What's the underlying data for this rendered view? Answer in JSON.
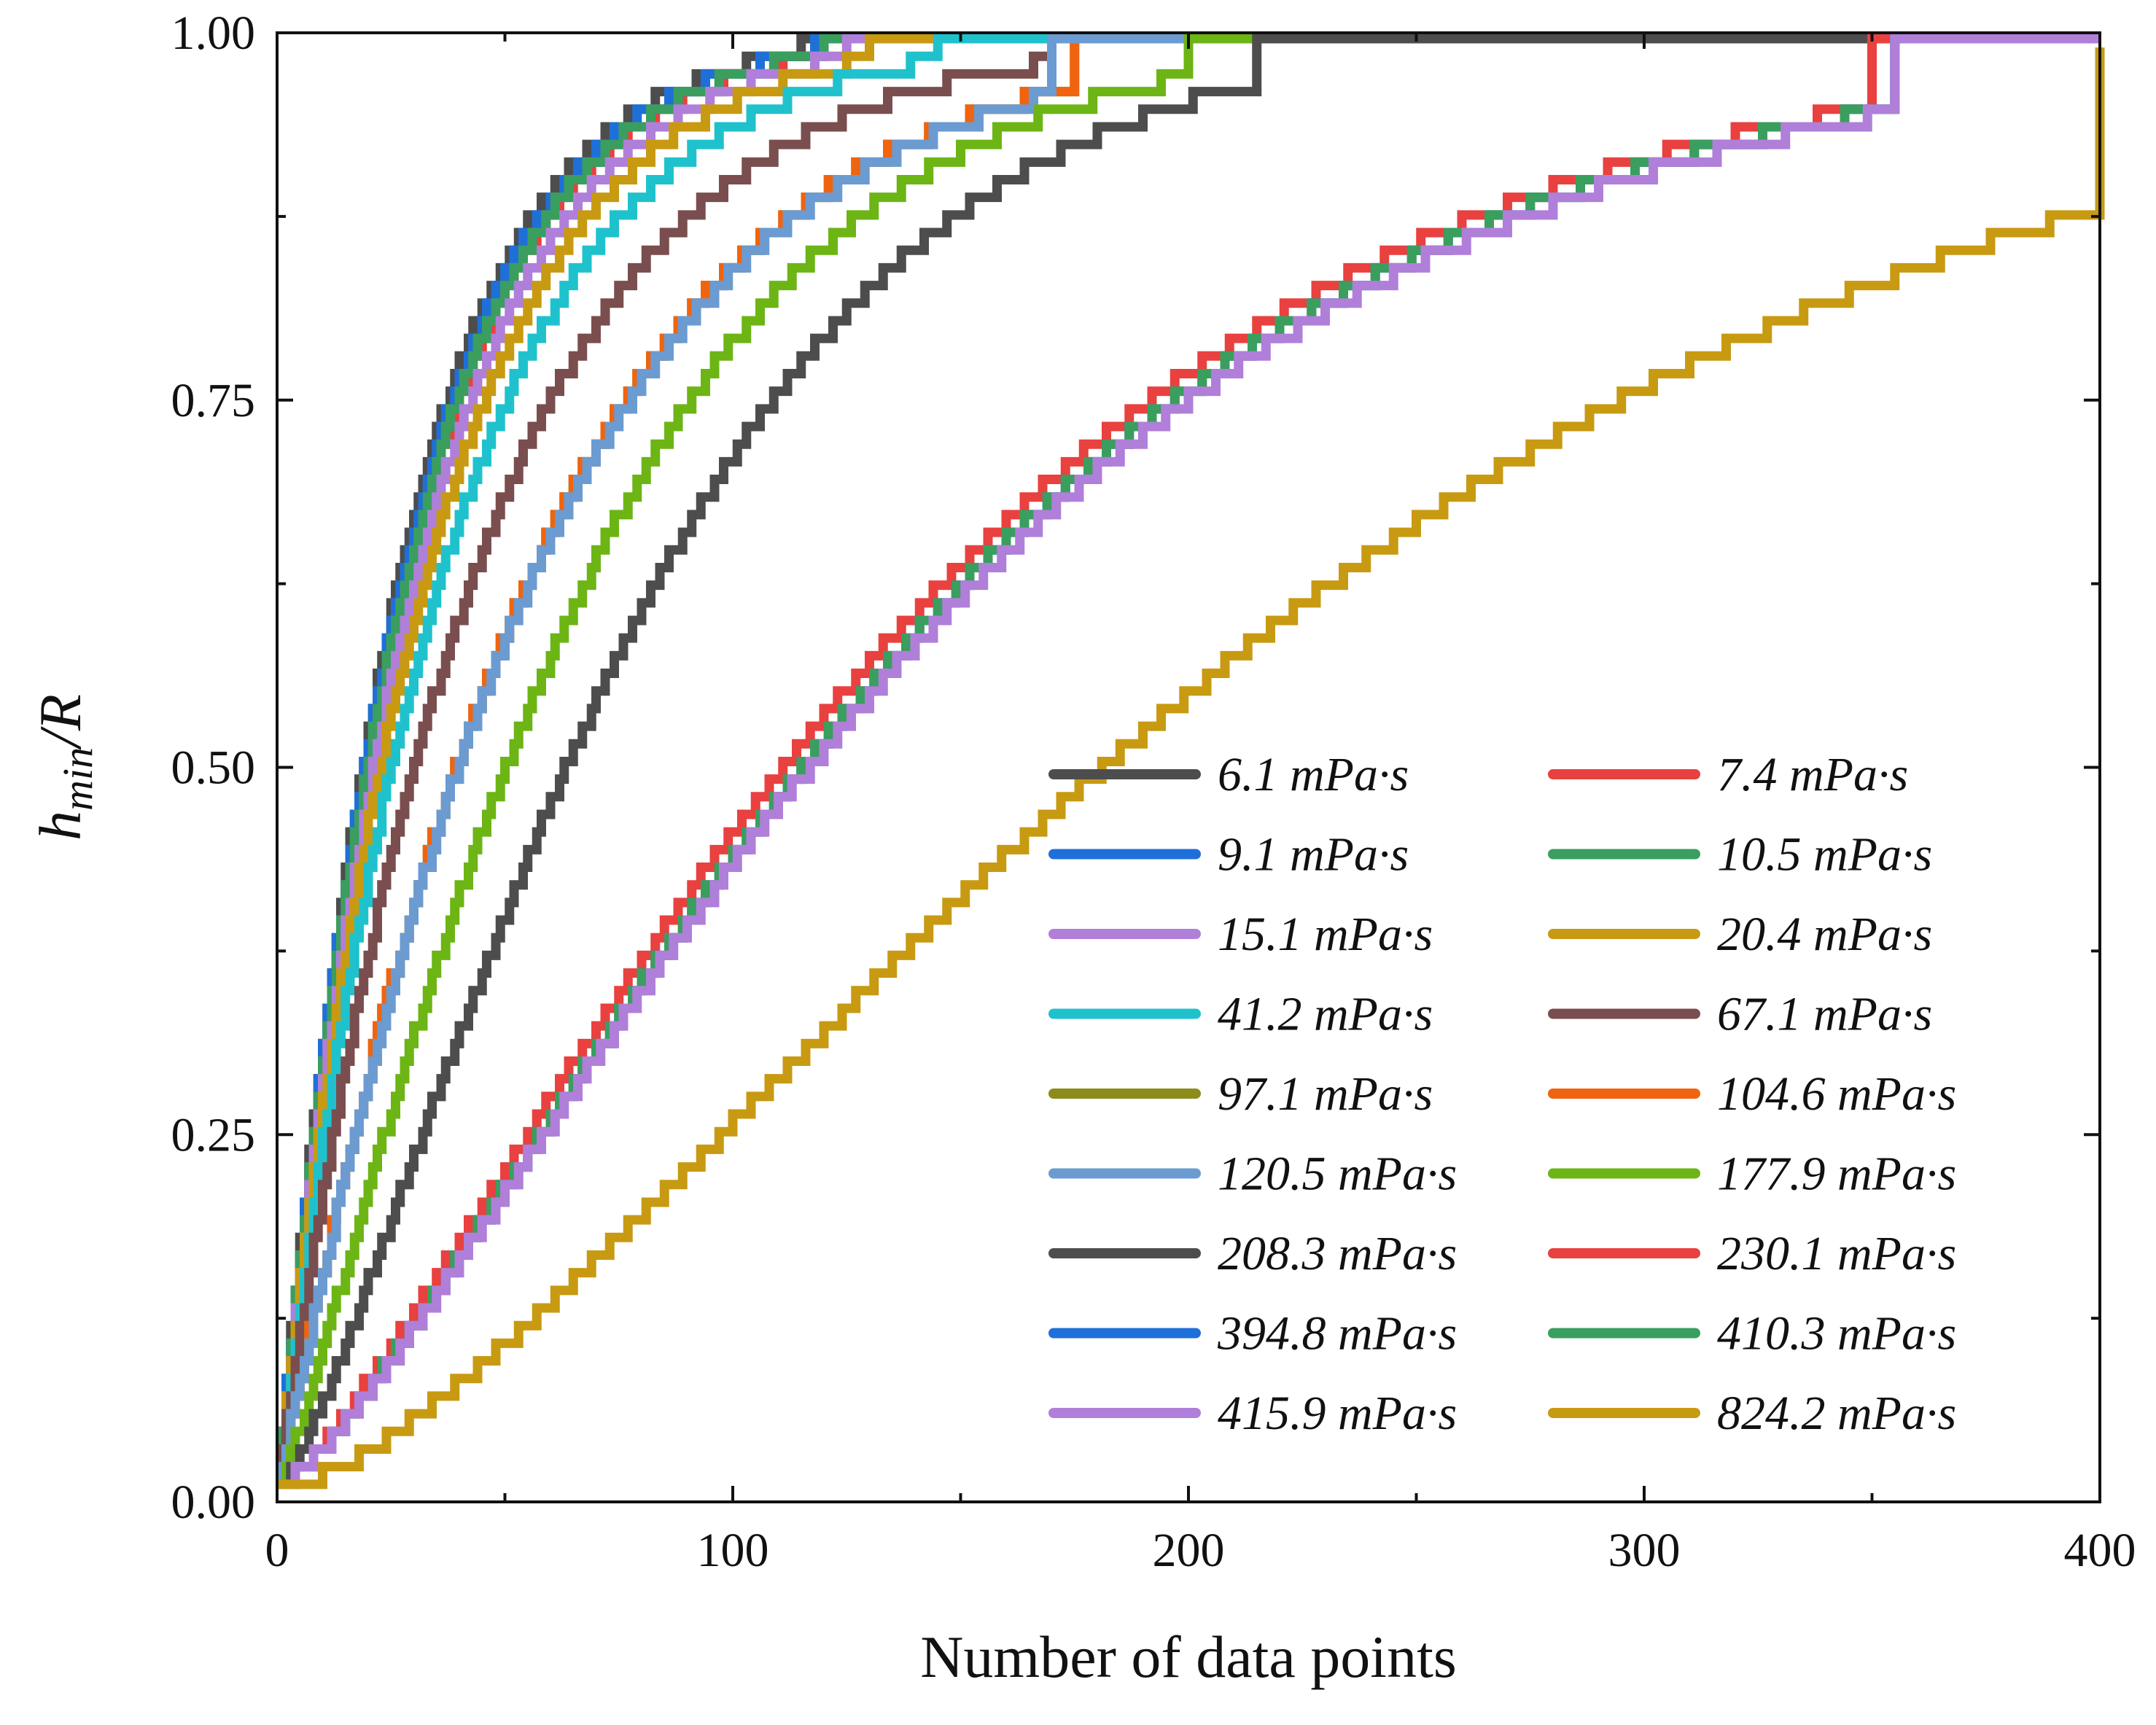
{
  "chart_data": {
    "type": "line",
    "title": "",
    "xlabel": "Number of data points",
    "ylabel_base": "h",
    "ylabel_sub": "min",
    "ylabel_tail": "/R",
    "xlim": [
      0,
      400
    ],
    "ylim": [
      0,
      1
    ],
    "x_tick_values": [
      0,
      100,
      200,
      300,
      400
    ],
    "x_tick_labels": [
      "0",
      "100",
      "200",
      "300",
      "400"
    ],
    "y_tick_values": [
      0,
      0.25,
      0.5,
      0.75,
      1.0
    ],
    "y_tick_labels": [
      "0.00",
      "0.25",
      "0.50",
      "0.75",
      "1.00"
    ],
    "grid": false,
    "legend_position": "bottom-right",
    "series": [
      {
        "name": "6.1 mPa·s",
        "color": "#4d4d4d",
        "k": 0.037,
        "p": 1.0,
        "y0": 0.01,
        "reach": 115,
        "steps": 0.012
      },
      {
        "name": "7.4 mPa·s",
        "color": "#e8413f",
        "k": 0.0345,
        "p": 1.0,
        "y0": 0.01,
        "reach": 120,
        "steps": 0.012
      },
      {
        "name": "9.1 mPa·s",
        "color": "#1f6fd9",
        "k": 0.036,
        "p": 1.0,
        "y0": 0.01,
        "reach": 118,
        "steps": 0.012
      },
      {
        "name": "10.5 mPa·s",
        "color": "#3a9e5f",
        "k": 0.035,
        "p": 1.0,
        "y0": 0.01,
        "reach": 120,
        "steps": 0.012
      },
      {
        "name": "15.1 mPa·s",
        "color": "#b07fd9",
        "k": 0.0325,
        "p": 1.0,
        "y0": 0.01,
        "reach": 125,
        "steps": 0.012
      },
      {
        "name": "20.4 mPa·s",
        "color": "#c89a12",
        "k": 0.0305,
        "p": 1.0,
        "y0": 0.01,
        "reach": 130,
        "steps": 0.012
      },
      {
        "name": "41.2 mPa·s",
        "color": "#1fc2cc",
        "k": 0.0275,
        "p": 1.0,
        "y0": 0.01,
        "reach": 145,
        "steps": 0.012
      },
      {
        "name": "67.1 mPa·s",
        "color": "#7a4e4e",
        "k": 0.023,
        "p": 1.0,
        "y0": 0.01,
        "reach": 170,
        "steps": 0.012
      },
      {
        "name": "97.1 mPa·s",
        "color": "#8c8c1a",
        "k": 0.0178,
        "p": 1.05,
        "y0": 0.01,
        "reach": 175,
        "steps": 0.012
      },
      {
        "name": "104.6 mPa·s",
        "color": "#f0640f",
        "k": 0.0178,
        "p": 1.05,
        "y0": 0.01,
        "reach": 175,
        "steps": 0.012
      },
      {
        "name": "120.5 mPa·s",
        "color": "#6b9bd1",
        "k": 0.0176,
        "p": 1.05,
        "y0": 0.01,
        "reach": 170,
        "steps": 0.012
      },
      {
        "name": "177.9 mPa·s",
        "color": "#6cb515",
        "k": 0.0145,
        "p": 1.18,
        "y0": 0.01,
        "reach": 200,
        "steps": 0.012
      },
      {
        "name": "208.3 mPa·s",
        "color": "#4d4d4d",
        "k": 0.0118,
        "p": 1.3,
        "y0": 0.01,
        "reach": 215,
        "steps": 0.012
      },
      {
        "name": "230.1 mPa·s",
        "color": "#e8413f",
        "k": 0.0067,
        "p": 1.28,
        "y0": 0.01,
        "reach": 350,
        "steps": 0.012
      },
      {
        "name": "394.8 mPa·s",
        "color": "#1f6fd9",
        "k": 0.0065,
        "p": 1.3,
        "y0": 0.01,
        "reach": 355,
        "steps": 0.012
      },
      {
        "name": "410.3 mPa·s",
        "color": "#3a9e5f",
        "k": 0.0065,
        "p": 1.3,
        "y0": 0.01,
        "reach": 355,
        "steps": 0.012
      },
      {
        "name": "415.9 mPa·s",
        "color": "#b07fd9",
        "k": 0.0064,
        "p": 1.3,
        "y0": 0.01,
        "reach": 355,
        "steps": 0.012
      },
      {
        "name": "824.2 mPa·s",
        "color": "#c89a12",
        "k": 0.0043,
        "p": 1.45,
        "y0": 0.008,
        "reach": 400,
        "ymax": 0.99,
        "steps": 0.012
      }
    ]
  }
}
